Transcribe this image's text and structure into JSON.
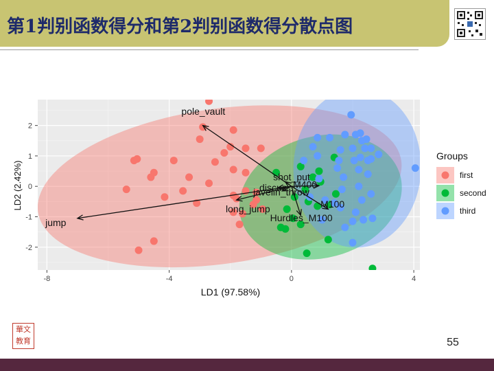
{
  "slide": {
    "title": "第1判别函数得分和第2判别函数得分散点图",
    "page_number": "55",
    "seal_text": "华文教育"
  },
  "colors": {
    "title_bar": "#c8c472",
    "title_text": "#1e2a6a",
    "bottom_band": "#55273e",
    "first": "#f8766d",
    "second": "#00ba38",
    "third": "#619cff",
    "panel": "#ebebeb"
  },
  "chart_data": {
    "type": "scatter",
    "title": "",
    "xlabel": "LD1 (97.58%)",
    "ylabel": "LD2 (2.42%)",
    "xlim": [
      -8.3,
      4.2
    ],
    "ylim": [
      -2.75,
      2.85
    ],
    "xticks": [
      -8,
      -4,
      0,
      4
    ],
    "yticks": [
      -2,
      -1,
      0,
      1,
      2
    ],
    "grid": true,
    "legend": {
      "title": "Groups",
      "position": "right",
      "entries": [
        "first",
        "second",
        "third"
      ]
    },
    "series": [
      {
        "name": "first",
        "color": "#f8766d",
        "ellipse": {
          "cx": -2.35,
          "cy": 0.0,
          "rx": 6.0,
          "ry": 2.55,
          "angle": 8
        },
        "points": [
          [
            -2.7,
            2.8
          ],
          [
            -2.9,
            1.95
          ],
          [
            -1.9,
            1.85
          ],
          [
            -3.0,
            1.55
          ],
          [
            -2.0,
            1.3
          ],
          [
            -1.5,
            1.25
          ],
          [
            -1.0,
            1.25
          ],
          [
            -2.2,
            1.1
          ],
          [
            -5.05,
            0.9
          ],
          [
            -5.15,
            0.85
          ],
          [
            -3.85,
            0.85
          ],
          [
            -2.5,
            0.8
          ],
          [
            -1.9,
            0.55
          ],
          [
            -4.5,
            0.45
          ],
          [
            -1.5,
            0.45
          ],
          [
            -4.6,
            0.3
          ],
          [
            -3.35,
            0.3
          ],
          [
            -2.7,
            0.1
          ],
          [
            -5.4,
            -0.1
          ],
          [
            -3.55,
            -0.15
          ],
          [
            -1.5,
            -0.15
          ],
          [
            -1.15,
            -0.2
          ],
          [
            -1.9,
            -0.3
          ],
          [
            -4.15,
            -0.35
          ],
          [
            -1.8,
            -0.4
          ],
          [
            -1.15,
            -0.45
          ],
          [
            -3.1,
            -0.55
          ],
          [
            -1.9,
            -0.85
          ],
          [
            -1.6,
            -0.9
          ],
          [
            -1.7,
            -1.25
          ],
          [
            -4.5,
            -1.8
          ],
          [
            -5.0,
            -2.1
          ],
          [
            -1.25,
            -0.6
          ],
          [
            -0.95,
            -0.75
          ]
        ]
      },
      {
        "name": "second",
        "color": "#00ba38",
        "ellipse": {
          "cx": 0.95,
          "cy": -0.35,
          "rx": 2.7,
          "ry": 2.0,
          "angle": 15
        },
        "points": [
          [
            -0.5,
            0.45
          ],
          [
            0.3,
            0.65
          ],
          [
            0.7,
            0.3
          ],
          [
            0.9,
            0.5
          ],
          [
            1.4,
            0.95
          ],
          [
            0.45,
            -0.1
          ],
          [
            0.1,
            -0.35
          ],
          [
            0.55,
            -0.5
          ],
          [
            0.85,
            -0.65
          ],
          [
            1.25,
            -0.6
          ],
          [
            -0.15,
            -0.75
          ],
          [
            0.05,
            -1.05
          ],
          [
            -0.35,
            -1.35
          ],
          [
            -0.2,
            -1.4
          ],
          [
            0.3,
            -1.25
          ],
          [
            1.2,
            -1.75
          ],
          [
            0.5,
            -2.2
          ],
          [
            1.45,
            -0.25
          ],
          [
            0.95,
            0.15
          ],
          [
            2.65,
            -2.7
          ]
        ]
      },
      {
        "name": "third",
        "color": "#619cff",
        "ellipse": {
          "cx": 2.15,
          "cy": 0.6,
          "rx": 2.6,
          "ry": 2.1,
          "angle": 88
        },
        "points": [
          [
            1.95,
            2.35
          ],
          [
            2.45,
            1.55
          ],
          [
            2.1,
            1.7
          ],
          [
            1.75,
            1.7
          ],
          [
            2.25,
            1.75
          ],
          [
            2.3,
            1.5
          ],
          [
            2.4,
            1.25
          ],
          [
            2.0,
            1.25
          ],
          [
            2.6,
            1.25
          ],
          [
            0.85,
            1.6
          ],
          [
            1.25,
            1.6
          ],
          [
            0.7,
            1.3
          ],
          [
            1.6,
            1.2
          ],
          [
            2.85,
            1.05
          ],
          [
            2.5,
            0.85
          ],
          [
            2.25,
            0.95
          ],
          [
            2.05,
            0.85
          ],
          [
            1.55,
            0.85
          ],
          [
            0.85,
            1.0
          ],
          [
            0.4,
            0.85
          ],
          [
            2.6,
            0.9
          ],
          [
            1.5,
            0.6
          ],
          [
            2.2,
            0.55
          ],
          [
            2.5,
            0.4
          ],
          [
            1.7,
            0.3
          ],
          [
            0.9,
            0.25
          ],
          [
            2.2,
            0.0
          ],
          [
            1.65,
            -0.1
          ],
          [
            2.6,
            -0.25
          ],
          [
            2.3,
            -0.45
          ],
          [
            0.6,
            -0.35
          ],
          [
            1.4,
            -0.55
          ],
          [
            1.6,
            -0.7
          ],
          [
            2.1,
            -0.85
          ],
          [
            2.65,
            -1.05
          ],
          [
            2.35,
            -1.1
          ],
          [
            1.0,
            -1.1
          ],
          [
            2.0,
            -1.15
          ],
          [
            1.75,
            -1.35
          ],
          [
            2.0,
            -1.85
          ],
          [
            4.05,
            0.6
          ],
          [
            1.1,
            -0.45
          ]
        ]
      }
    ],
    "loadings": [
      {
        "label": "pole_vault",
        "x": -2.9,
        "y": 2.0,
        "lx": -3.6,
        "ly": 2.35
      },
      {
        "label": "jump",
        "x": -7.0,
        "y": -1.05,
        "lx": -8.05,
        "ly": -1.3
      },
      {
        "label": "long_jump",
        "x": -1.8,
        "y": -0.45,
        "lx": -2.15,
        "ly": -0.85
      },
      {
        "label": "shot_put",
        "x": -0.2,
        "y": 0.15,
        "lx": -0.6,
        "ly": 0.2
      },
      {
        "label": "discus",
        "x": -0.45,
        "y": -0.05,
        "lx": -1.05,
        "ly": -0.15
      },
      {
        "label": "javelin_throw",
        "x": -0.3,
        "y": -0.15,
        "lx": -1.25,
        "ly": -0.3
      },
      {
        "label": "M400",
        "x": 0.9,
        "y": 0.02,
        "lx": 0.05,
        "ly": -0.05
      },
      {
        "label": "M100",
        "x": 1.2,
        "y": -0.75,
        "lx": 0.95,
        "ly": -0.7
      },
      {
        "label": "Hurdles_M100",
        "x": 0.3,
        "y": -0.95,
        "lx": -0.7,
        "ly": -1.15
      }
    ]
  }
}
